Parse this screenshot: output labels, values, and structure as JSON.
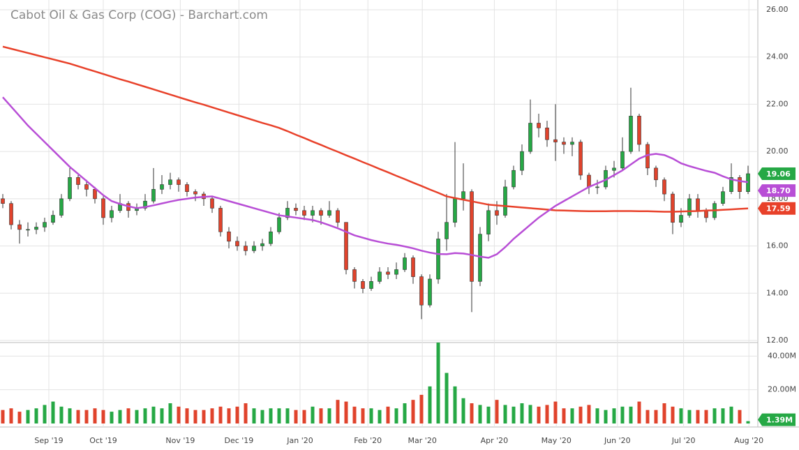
{
  "chart_data": {
    "type": "candlestick",
    "title": "Cabot Oil & Gas Corp (COG) - Barchart.com",
    "categories": [
      null,
      null,
      null,
      null,
      null,
      null,
      null,
      null,
      null,
      null,
      null,
      null,
      null,
      null,
      null,
      null,
      null,
      null,
      null,
      null,
      null,
      null,
      null,
      null,
      null,
      null,
      null,
      null,
      null,
      null,
      null,
      null,
      null,
      null,
      null,
      null,
      null,
      null,
      null,
      null,
      null,
      null,
      null,
      null,
      null,
      null,
      null,
      null,
      null,
      null,
      null,
      null,
      null,
      null,
      null,
      null,
      null,
      null,
      null,
      null,
      null,
      null,
      null,
      null,
      null,
      null,
      null,
      null,
      null,
      null,
      null,
      null,
      null,
      null,
      null,
      null,
      null,
      null,
      null,
      null,
      null,
      null,
      null,
      null,
      null,
      null,
      null,
      null,
      null,
      null
    ],
    "open": [
      18.0,
      17.8,
      16.9,
      16.7,
      16.7,
      16.8,
      17.0,
      17.3,
      18.0,
      18.9,
      18.6,
      18.4,
      18.0,
      17.2,
      17.5,
      17.8,
      17.5,
      17.6,
      17.9,
      18.4,
      18.6,
      18.8,
      18.6,
      18.3,
      18.2,
      18.0,
      17.6,
      16.6,
      16.2,
      16.0,
      15.8,
      16.0,
      16.1,
      16.6,
      17.2,
      17.6,
      17.5,
      17.3,
      17.5,
      17.3,
      17.5,
      17.0,
      15.0,
      14.5,
      14.2,
      14.5,
      14.9,
      14.8,
      15.0,
      15.5,
      14.7,
      13.5,
      14.6,
      16.3,
      17.0,
      18.0,
      18.3,
      14.5,
      16.5,
      17.5,
      17.3,
      18.5,
      19.2,
      20.0,
      21.2,
      21.0,
      20.5,
      20.4,
      20.3,
      20.4,
      19.0,
      18.5,
      18.5,
      19.2,
      19.3,
      20.0,
      21.5,
      20.3,
      19.3,
      18.8,
      18.2,
      17.0,
      17.3,
      18.0,
      17.5,
      17.2,
      17.8,
      18.3,
      18.9,
      18.3
    ],
    "high": [
      18.2,
      17.9,
      17.1,
      17.0,
      17.0,
      17.2,
      17.5,
      18.2,
      19.3,
      19.0,
      18.8,
      18.5,
      18.1,
      17.7,
      18.2,
      17.9,
      17.8,
      18.2,
      19.3,
      19.0,
      19.1,
      18.9,
      18.7,
      18.4,
      18.3,
      18.1,
      17.7,
      16.8,
      16.4,
      16.2,
      16.2,
      16.3,
      16.8,
      17.4,
      17.9,
      17.8,
      17.7,
      17.7,
      17.6,
      17.9,
      17.6,
      17.0,
      15.1,
      14.6,
      14.7,
      15.1,
      15.1,
      15.3,
      15.7,
      15.6,
      14.8,
      14.8,
      16.6,
      18.2,
      20.4,
      19.5,
      18.4,
      16.8,
      17.8,
      17.9,
      18.8,
      19.4,
      20.3,
      22.2,
      21.6,
      21.3,
      22.0,
      20.6,
      20.6,
      20.5,
      19.1,
      18.8,
      19.4,
      19.6,
      20.6,
      22.7,
      21.6,
      20.4,
      19.4,
      18.9,
      18.3,
      17.6,
      18.2,
      18.2,
      17.6,
      17.9,
      18.5,
      19.5,
      19.0,
      19.4
    ],
    "low": [
      17.6,
      16.7,
      16.1,
      16.4,
      16.5,
      16.6,
      16.9,
      17.2,
      17.9,
      18.4,
      18.1,
      17.8,
      16.9,
      17.0,
      17.4,
      17.2,
      17.3,
      17.5,
      17.8,
      18.2,
      18.4,
      18.3,
      18.1,
      17.9,
      17.7,
      17.4,
      16.4,
      15.9,
      15.8,
      15.6,
      15.7,
      15.8,
      16.0,
      16.5,
      17.1,
      17.3,
      17.1,
      17.0,
      16.9,
      17.2,
      16.8,
      14.8,
      14.2,
      14.0,
      14.1,
      14.4,
      14.6,
      14.6,
      14.9,
      14.4,
      12.9,
      13.4,
      14.4,
      15.8,
      16.8,
      17.5,
      13.2,
      14.3,
      16.2,
      16.9,
      17.2,
      18.4,
      19.0,
      19.9,
      20.6,
      20.2,
      19.6,
      19.9,
      19.8,
      18.8,
      18.2,
      18.2,
      18.4,
      18.9,
      19.2,
      19.9,
      20.0,
      19.0,
      18.5,
      17.9,
      16.5,
      16.8,
      17.2,
      17.2,
      17.0,
      17.1,
      17.7,
      18.2,
      18.0,
      18.2
    ],
    "close": [
      17.8,
      16.9,
      16.7,
      16.7,
      16.8,
      17.0,
      17.3,
      18.0,
      18.9,
      18.6,
      18.4,
      18.0,
      17.2,
      17.5,
      17.8,
      17.5,
      17.6,
      17.9,
      18.4,
      18.6,
      18.8,
      18.6,
      18.3,
      18.2,
      18.0,
      17.6,
      16.6,
      16.2,
      16.0,
      15.8,
      16.0,
      16.1,
      16.6,
      17.2,
      17.6,
      17.5,
      17.3,
      17.5,
      17.3,
      17.5,
      17.0,
      15.0,
      14.5,
      14.2,
      14.5,
      14.9,
      14.8,
      15.0,
      15.5,
      14.7,
      13.5,
      14.6,
      16.3,
      17.0,
      18.0,
      18.3,
      14.5,
      16.5,
      17.5,
      17.3,
      18.5,
      19.2,
      20.0,
      21.2,
      21.0,
      20.5,
      20.4,
      20.3,
      20.4,
      19.0,
      18.5,
      18.5,
      19.2,
      19.3,
      20.0,
      21.5,
      20.3,
      19.3,
      18.8,
      18.2,
      17.0,
      17.3,
      18.0,
      17.5,
      17.2,
      17.8,
      18.3,
      18.9,
      18.3,
      19.06
    ],
    "up_color": "#26a845",
    "down_color": "#e0432c",
    "series": [
      {
        "color": "#e8412a",
        "last_label": "17.59",
        "values": [
          24.44,
          24.35,
          24.26,
          24.17,
          24.08,
          23.99,
          23.9,
          23.81,
          23.72,
          23.61,
          23.5,
          23.39,
          23.28,
          23.17,
          23.06,
          22.96,
          22.85,
          22.74,
          22.63,
          22.52,
          22.41,
          22.3,
          22.19,
          22.08,
          21.98,
          21.87,
          21.76,
          21.65,
          21.54,
          21.43,
          21.32,
          21.21,
          21.11,
          21.0,
          20.86,
          20.71,
          20.57,
          20.42,
          20.28,
          20.13,
          19.99,
          19.84,
          19.7,
          19.55,
          19.41,
          19.26,
          19.12,
          18.97,
          18.83,
          18.68,
          18.54,
          18.39,
          18.25,
          18.1,
          18.03,
          17.96,
          17.89,
          17.82,
          17.75,
          17.72,
          17.69,
          17.66,
          17.63,
          17.6,
          17.57,
          17.54,
          17.51,
          17.5,
          17.49,
          17.48,
          17.47,
          17.47,
          17.47,
          17.48,
          17.48,
          17.48,
          17.47,
          17.47,
          17.46,
          17.45,
          17.45,
          17.46,
          17.47,
          17.48,
          17.5,
          17.51,
          17.53,
          17.55,
          17.57,
          17.59
        ]
      },
      {
        "color": "#b84ed6",
        "last_label": "18.70",
        "values": [
          22.3,
          21.9,
          21.5,
          21.1,
          20.75,
          20.4,
          20.05,
          19.7,
          19.35,
          19.05,
          18.75,
          18.45,
          18.15,
          17.9,
          17.78,
          17.68,
          17.6,
          17.65,
          17.72,
          17.8,
          17.88,
          17.95,
          18.0,
          18.05,
          18.08,
          18.1,
          18.0,
          17.9,
          17.8,
          17.7,
          17.6,
          17.5,
          17.4,
          17.3,
          17.25,
          17.2,
          17.15,
          17.1,
          17.0,
          16.88,
          16.75,
          16.6,
          16.45,
          16.35,
          16.25,
          16.17,
          16.1,
          16.05,
          15.98,
          15.9,
          15.8,
          15.72,
          15.66,
          15.65,
          15.7,
          15.68,
          15.62,
          15.55,
          15.5,
          15.65,
          15.95,
          16.3,
          16.6,
          16.9,
          17.2,
          17.45,
          17.7,
          17.9,
          18.1,
          18.3,
          18.5,
          18.65,
          18.8,
          19.0,
          19.2,
          19.45,
          19.7,
          19.85,
          19.9,
          19.85,
          19.7,
          19.5,
          19.38,
          19.28,
          19.18,
          19.1,
          18.95,
          18.82,
          18.75,
          18.7
        ]
      }
    ],
    "volume": {
      "last_label": "1.39M",
      "values": [
        8,
        9,
        7,
        8,
        9,
        11,
        13,
        10,
        9,
        8,
        8,
        9,
        8,
        7,
        8,
        9,
        8,
        9,
        10,
        9,
        12,
        10,
        9,
        8,
        8,
        9,
        10,
        9,
        10,
        12,
        9,
        8,
        9,
        9,
        9,
        8,
        8,
        10,
        9,
        9,
        14,
        13,
        10,
        9,
        9,
        8,
        10,
        9,
        12,
        14,
        17,
        22,
        48,
        30,
        22,
        15,
        12,
        11,
        10,
        14,
        11,
        10,
        12,
        11,
        10,
        11,
        13,
        9,
        9,
        10,
        11,
        9,
        8,
        9,
        10,
        10,
        13,
        8,
        8,
        12,
        10,
        9,
        8,
        8,
        8,
        9,
        9,
        10,
        8,
        1.39
      ],
      "ylim": [
        0,
        48
      ],
      "yticks": [
        {
          "value": 20,
          "label": "20.00M"
        },
        {
          "value": 40,
          "label": "40.00M"
        }
      ]
    },
    "ylim": [
      12,
      26
    ],
    "yticks": [
      {
        "value": 12,
        "label": "12.00"
      },
      {
        "value": 14,
        "label": "14.00"
      },
      {
        "value": 16,
        "label": "16.00"
      },
      {
        "value": 18,
        "label": "18.00"
      },
      {
        "value": 20,
        "label": "20.00"
      },
      {
        "value": 22,
        "label": "22.00"
      },
      {
        "value": 24,
        "label": "24.00"
      },
      {
        "value": 26,
        "label": "26.00"
      }
    ],
    "xticks": [
      {
        "value": 5.5,
        "label": "Sep '19"
      },
      {
        "value": 12,
        "label": "Oct '19"
      },
      {
        "value": 21.2,
        "label": "Nov '19"
      },
      {
        "value": 28.2,
        "label": "Dec '19"
      },
      {
        "value": 35.5,
        "label": "Jan '20"
      },
      {
        "value": 43.6,
        "label": "Feb '20"
      },
      {
        "value": 50.1,
        "label": "Mar '20"
      },
      {
        "value": 58.7,
        "label": "Apr '20"
      },
      {
        "value": 66.1,
        "label": "May '20"
      },
      {
        "value": 73.4,
        "label": "Jun '20"
      },
      {
        "value": 81.3,
        "label": "Jul '20"
      },
      {
        "value": 89.1,
        "label": "Aug '20"
      }
    ],
    "grid": true
  }
}
